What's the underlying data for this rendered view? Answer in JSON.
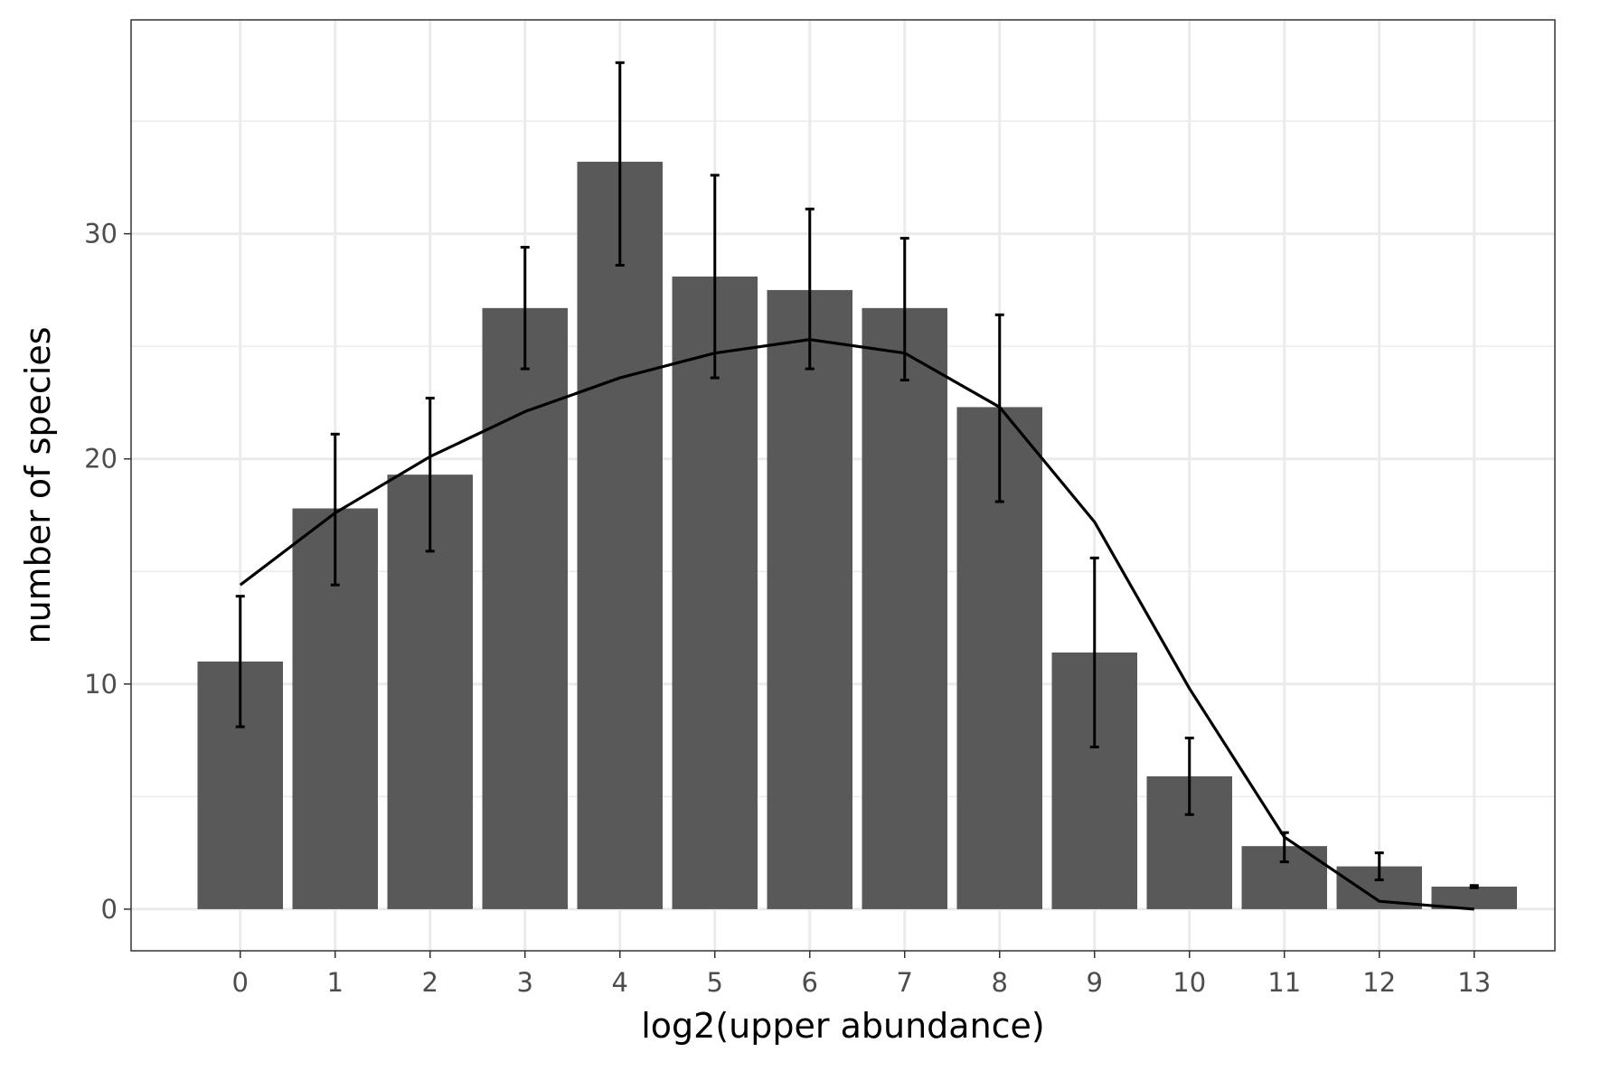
{
  "chart_data": {
    "type": "bar",
    "xlabel": "log2(upper abundance)",
    "ylabel": "number of species",
    "categories": [
      "0",
      "1",
      "2",
      "3",
      "4",
      "5",
      "6",
      "7",
      "8",
      "9",
      "10",
      "11",
      "12",
      "13"
    ],
    "x": [
      0,
      1,
      2,
      3,
      4,
      5,
      6,
      7,
      8,
      9,
      10,
      11,
      12,
      13
    ],
    "values": [
      11.0,
      17.8,
      19.3,
      26.7,
      33.2,
      28.1,
      27.5,
      26.7,
      22.3,
      11.4,
      5.9,
      2.8,
      1.9,
      1.0
    ],
    "error_bars": {
      "lower": [
        8.1,
        14.4,
        15.9,
        24.0,
        28.6,
        23.6,
        24.0,
        23.5,
        18.1,
        7.2,
        4.2,
        2.1,
        1.3,
        0.95
      ],
      "upper": [
        13.9,
        21.1,
        22.7,
        29.4,
        37.6,
        32.6,
        31.1,
        29.8,
        26.4,
        15.6,
        7.6,
        3.4,
        2.5,
        1.05
      ]
    },
    "line": {
      "x": [
        0,
        1,
        2,
        3,
        4,
        5,
        6,
        7,
        8,
        9,
        10,
        11,
        12,
        13
      ],
      "y": [
        14.4,
        17.6,
        20.1,
        22.1,
        23.6,
        24.7,
        25.3,
        24.7,
        22.3,
        17.2,
        9.8,
        3.2,
        0.35,
        0.0
      ]
    },
    "xlim": [
      -1.15,
      13.85
    ],
    "ylim": [
      -1.85,
      39.5
    ],
    "yticks": [
      0,
      10,
      20,
      30
    ],
    "y_minor_ticks": [
      5,
      15,
      25,
      35
    ],
    "grid": true,
    "colors": {
      "bar": "#595959",
      "line": "#000000",
      "errorbar": "#000000",
      "grid": "#ebebeb",
      "panel_border": "#333333",
      "tick_label": "#4d4d4d"
    }
  }
}
